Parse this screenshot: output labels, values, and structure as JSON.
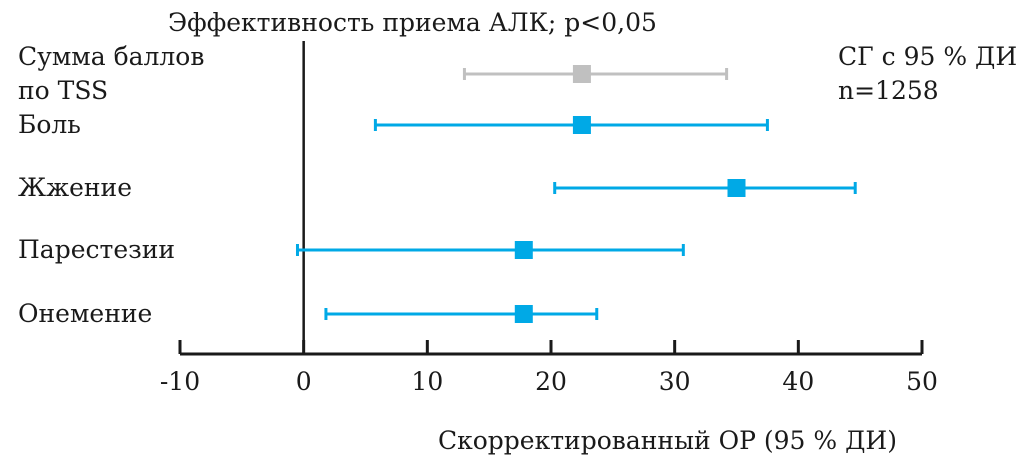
{
  "chart_data": {
    "type": "forest",
    "title": "Эффективность приема АЛК; p<0,05",
    "legend": [
      "СГ с 95 % ДИ",
      "n=1258"
    ],
    "xlabel": "Скорректированный ОР (95 % ДИ)",
    "ylabel": "",
    "xlim": [
      -10,
      50
    ],
    "xticks": [
      -10,
      0,
      10,
      20,
      30,
      40,
      50
    ],
    "grid": false,
    "reference_line": 0,
    "colors": {
      "summary": "#c0c0c0",
      "items": "#00a9e6",
      "axis": "#1a1a1a"
    },
    "rows": [
      {
        "label_lines": [
          "Сумма баллов",
          "по TSS"
        ],
        "estimate": 22.5,
        "ci_low": 13.0,
        "ci_high": 34.2,
        "kind": "summary"
      },
      {
        "label_lines": [
          "Боль"
        ],
        "estimate": 22.5,
        "ci_low": 5.8,
        "ci_high": 37.5,
        "kind": "item"
      },
      {
        "label_lines": [
          "Жжение"
        ],
        "estimate": 35.0,
        "ci_low": 20.3,
        "ci_high": 44.6,
        "kind": "item"
      },
      {
        "label_lines": [
          "Парестезии"
        ],
        "estimate": 17.8,
        "ci_low": -0.5,
        "ci_high": 30.7,
        "kind": "item"
      },
      {
        "label_lines": [
          "Онемение"
        ],
        "estimate": 17.8,
        "ci_low": 1.8,
        "ci_high": 23.7,
        "kind": "item"
      }
    ]
  }
}
